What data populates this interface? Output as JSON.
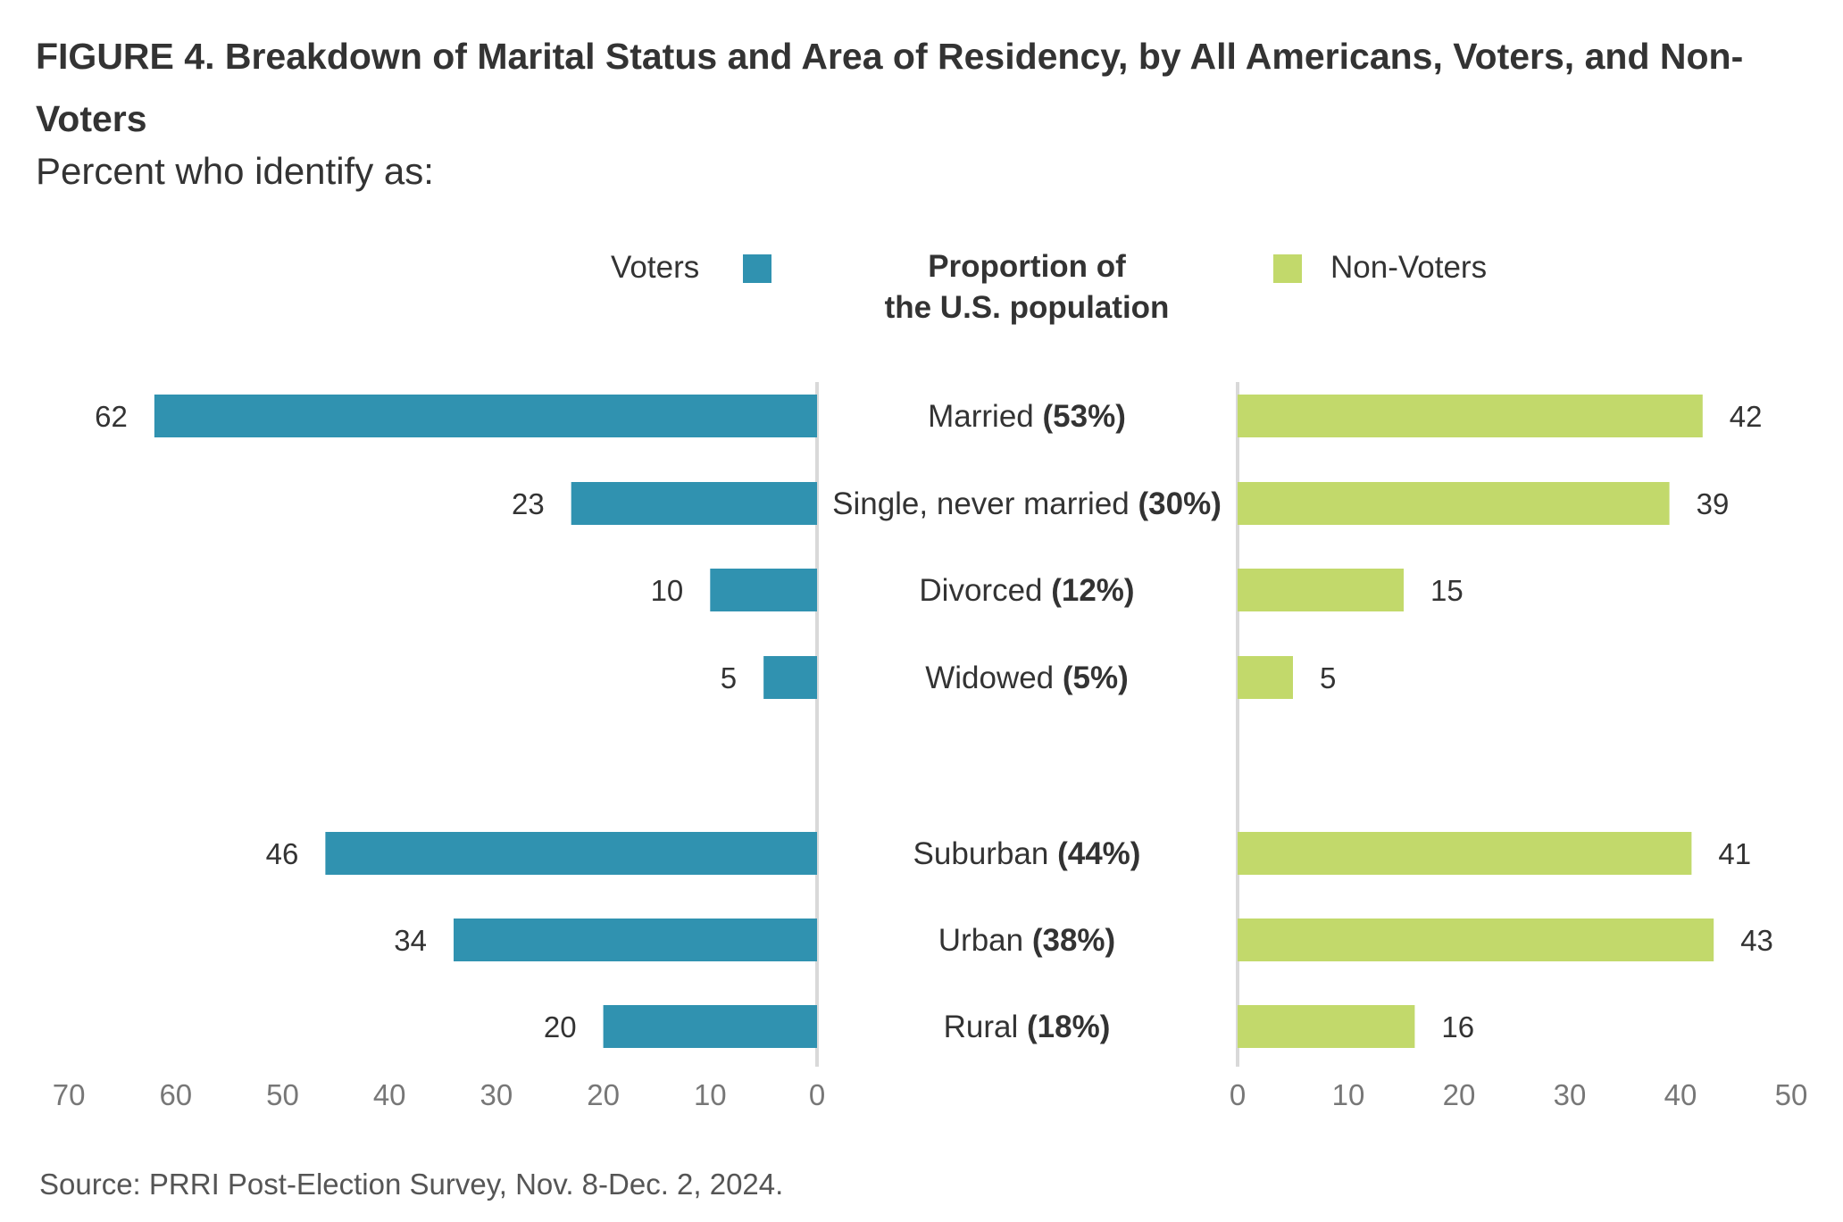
{
  "title": "FIGURE 4.  Breakdown of Marital Status and Area of Residency, by All Americans, Voters, and Non-Voters",
  "subtitle": "Percent who identify as:",
  "legend": {
    "voters": "Voters",
    "non_voters": "Non-Voters",
    "center_line1": "Proportion of",
    "center_line2": "the U.S. population"
  },
  "source": "Source: PRRI Post-Election Survey, Nov. 8-Dec. 2, 2024.",
  "colors": {
    "voters": "#3092b0",
    "non_voters": "#c2d96b",
    "axis": "#d9d9d9",
    "tick_text": "#777777"
  },
  "chart_data": {
    "type": "bar",
    "categories": [
      {
        "name": "Married",
        "pct": "(53%)"
      },
      {
        "name": "Single, never married",
        "pct": "(30%)"
      },
      {
        "name": "Divorced",
        "pct": "(12%)"
      },
      {
        "name": "Widowed",
        "pct": "(5%)"
      },
      {
        "name": "Suburban",
        "pct": "(44%)"
      },
      {
        "name": "Urban",
        "pct": "(38%)"
      },
      {
        "name": "Rural",
        "pct": "(18%)"
      }
    ],
    "series": [
      {
        "name": "Voters",
        "values": [
          62,
          23,
          10,
          5,
          46,
          34,
          20
        ]
      },
      {
        "name": "Non-Voters",
        "values": [
          42,
          39,
          15,
          5,
          41,
          43,
          16
        ]
      }
    ],
    "voters_axis": {
      "ticks": [
        70,
        60,
        50,
        40,
        30,
        20,
        10,
        0
      ],
      "xlim": [
        70,
        0
      ]
    },
    "non_voters_axis": {
      "ticks": [
        0,
        10,
        20,
        30,
        40,
        50
      ],
      "xlim": [
        0,
        50
      ]
    }
  }
}
